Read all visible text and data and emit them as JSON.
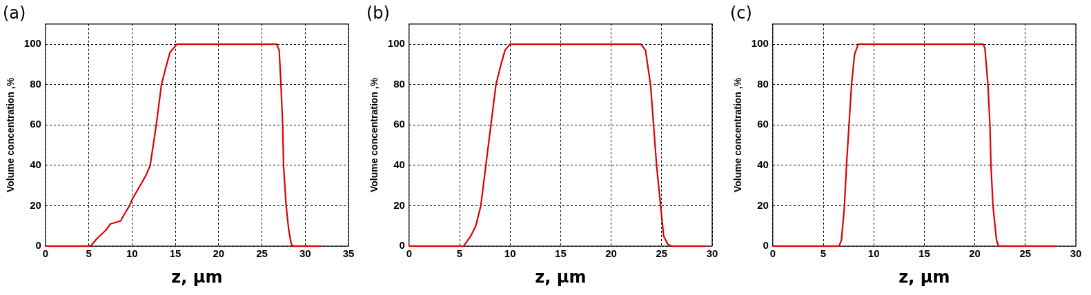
{
  "chart_data": [
    {
      "type": "line",
      "title": "(a)",
      "xlabel": "z, μm",
      "ylabel": "Volume concentration ,%",
      "color": "#dd0000",
      "x": [
        0,
        5.0,
        5.3,
        6.0,
        7.0,
        7.5,
        8.7,
        9.0,
        9.7,
        10.0,
        10.8,
        11.6,
        12.1,
        12.8,
        13.4,
        14.0,
        14.4,
        15.2,
        26.7,
        27.0,
        27.2,
        27.4,
        27.5,
        27.8,
        28.1,
        28.4,
        28.6,
        31.9
      ],
      "values": [
        0,
        0,
        0.5,
        4,
        8,
        11,
        12.5,
        15,
        20,
        23,
        29,
        35,
        40,
        60,
        80,
        90,
        96,
        100,
        100,
        97,
        80,
        60,
        40,
        20,
        8,
        1,
        0,
        0
      ],
      "xlim": [
        0,
        35
      ],
      "xticks": [
        0,
        5,
        10,
        15,
        20,
        25,
        30,
        35
      ],
      "ylim": [
        0,
        110
      ],
      "yticks": [
        0,
        20,
        40,
        60,
        80,
        100
      ],
      "grid": true,
      "legend": false,
      "marker": "none",
      "line_style": "solid"
    },
    {
      "type": "line",
      "title": "(b)",
      "xlabel": "z, μm",
      "ylabel": "Volume concentration ,%",
      "color": "#dd0000",
      "x": [
        0,
        5.4,
        6.1,
        6.6,
        7.1,
        7.6,
        8.1,
        8.6,
        9.1,
        9.5,
        10.0,
        10.5,
        22.95,
        23.4,
        23.9,
        24.2,
        24.5,
        24.9,
        25.2,
        25.6,
        26.0,
        29.4
      ],
      "values": [
        0,
        0,
        5,
        10,
        20,
        40,
        60,
        80,
        90,
        97,
        100,
        100,
        100,
        97,
        80,
        60,
        40,
        20,
        5,
        1,
        0,
        0
      ],
      "xlim": [
        0,
        30
      ],
      "xticks": [
        0,
        5,
        10,
        15,
        20,
        25,
        30
      ],
      "ylim": [
        0,
        110
      ],
      "yticks": [
        0,
        20,
        40,
        60,
        80,
        100
      ],
      "grid": true,
      "legend": false,
      "marker": "none",
      "line_style": "solid"
    },
    {
      "type": "line",
      "title": "(c)",
      "xlabel": "z, μm",
      "ylabel": "Volume concentration ,%",
      "color": "#dd0000",
      "x": [
        0,
        6.56,
        6.8,
        7.1,
        7.3,
        7.55,
        7.8,
        8.1,
        8.46,
        20.83,
        21.0,
        21.3,
        21.5,
        21.6,
        21.8,
        22.15,
        22.35,
        28.1
      ],
      "values": [
        0,
        0,
        3,
        20,
        40,
        60,
        80,
        95,
        100,
        100,
        98,
        80,
        60,
        40,
        20,
        3,
        0,
        0
      ],
      "xlim": [
        0,
        30
      ],
      "xticks": [
        0,
        5,
        10,
        15,
        20,
        25,
        30
      ],
      "ylim": [
        0,
        110
      ],
      "yticks": [
        0,
        20,
        40,
        60,
        80,
        100
      ],
      "grid": true,
      "legend": false,
      "marker": "none",
      "line_style": "solid"
    }
  ]
}
